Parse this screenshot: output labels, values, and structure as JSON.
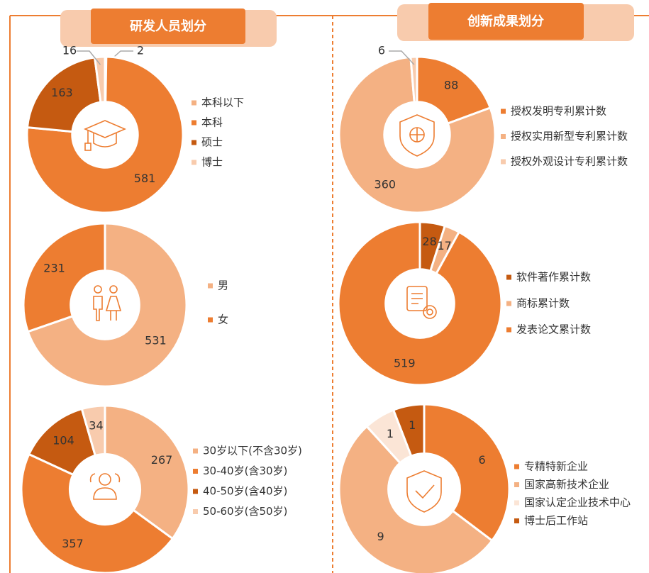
{
  "sections": [
    {
      "title": "研发人员划分"
    },
    {
      "title": "创新成果划分"
    }
  ],
  "chart_data": [
    {
      "type": "donut",
      "categories": [
        "本科以下",
        "本科",
        "硕士",
        "博士"
      ],
      "values": [
        2,
        581,
        163,
        16
      ],
      "colors": [
        "#f4b183",
        "#ed7d31",
        "#c55a11",
        "#f8cbad"
      ]
    },
    {
      "type": "donut",
      "categories": [
        "男",
        "女"
      ],
      "values": [
        531,
        231
      ],
      "colors": [
        "#f4b183",
        "#ed7d31"
      ]
    },
    {
      "type": "donut",
      "categories": [
        "30岁以下(不含30岁)",
        "30-40岁(含30岁)",
        "40-50岁(含40岁)",
        "50-60岁(含50岁)"
      ],
      "values": [
        267,
        357,
        104,
        34
      ],
      "colors": [
        "#f4b183",
        "#ed7d31",
        "#c55a11",
        "#f8cbad"
      ]
    },
    {
      "type": "donut",
      "categories": [
        "授权发明专利累计数",
        "授权实用新型专利累计数",
        "授权外观设计专利累计数"
      ],
      "values": [
        88,
        360,
        6
      ],
      "colors": [
        "#ed7d31",
        "#f4b183",
        "#f8cbad"
      ]
    },
    {
      "type": "donut",
      "categories": [
        "软件著作累计数",
        "商标累计数",
        "发表论文累计数"
      ],
      "values": [
        28,
        17,
        519
      ],
      "colors": [
        "#c55a11",
        "#f4b183",
        "#ed7d31"
      ]
    },
    {
      "type": "donut",
      "categories": [
        "专精特新企业",
        "国家高新技术企业",
        "国家认定企业技术中心",
        "博士后工作站"
      ],
      "values": [
        6,
        9,
        1,
        1
      ],
      "colors": [
        "#ed7d31",
        "#f4b183",
        "#fbe5d6",
        "#c55a11"
      ]
    }
  ]
}
